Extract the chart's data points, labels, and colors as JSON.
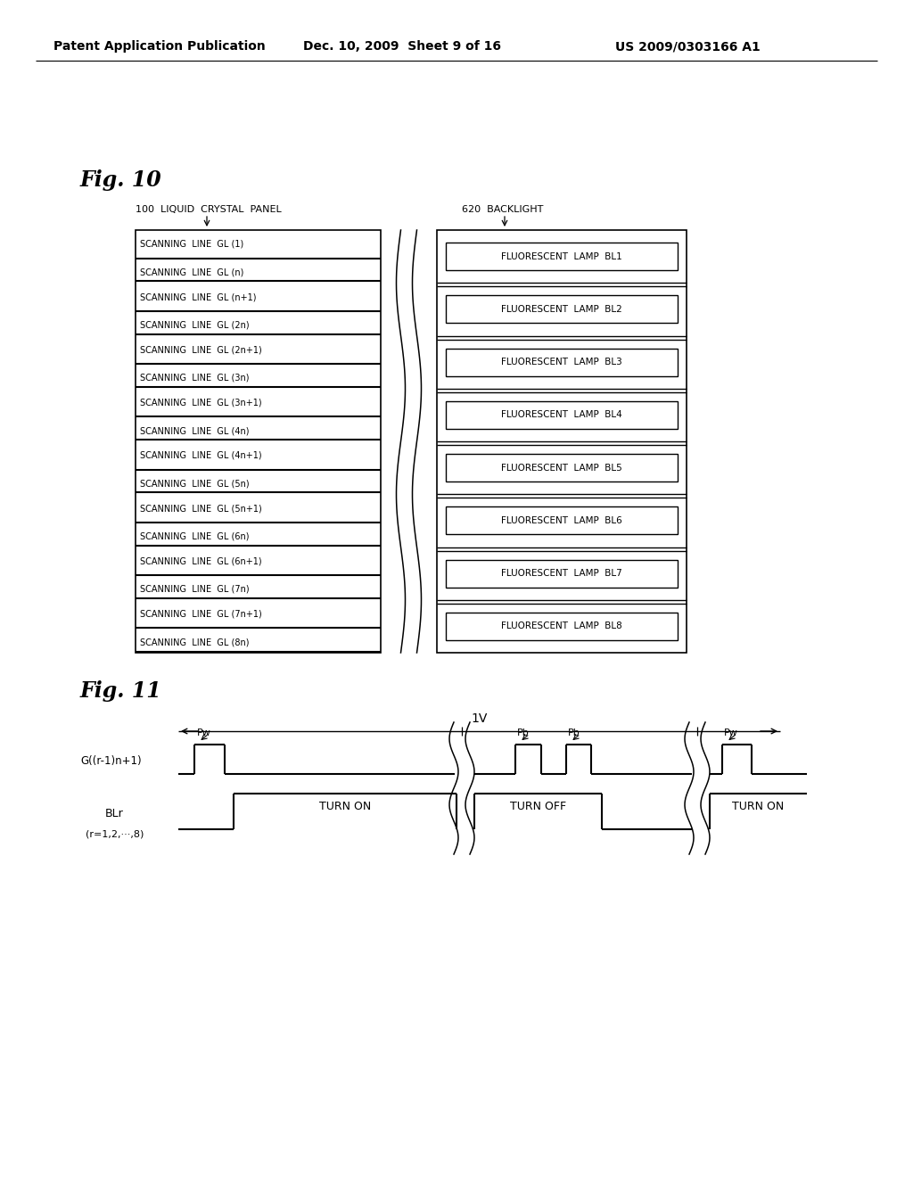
{
  "header_left": "Patent Application Publication",
  "header_mid": "Dec. 10, 2009  Sheet 9 of 16",
  "header_right": "US 2009/0303166 A1",
  "fig10_title": "Fig. 10",
  "fig11_title": "Fig. 11",
  "panel_label": "100 LIQUID CRYSTAL PANEL",
  "backlight_label": "620 BACKLIGHT",
  "scanning_lines": [
    "SCANNING  LINE  GL (1)",
    "SCANNING  LINE  GL (n)",
    "SCANNING  LINE  GL (n+1)",
    "SCANNING  LINE  GL (2n)",
    "SCANNING  LINE  GL (2n+1)",
    "SCANNING  LINE  GL (3n)",
    "SCANNING  LINE  GL (3n+1)",
    "SCANNING  LINE  GL (4n)",
    "SCANNING  LINE  GL (4n+1)",
    "SCANNING  LINE  GL (5n)",
    "SCANNING  LINE  GL (5n+1)",
    "SCANNING  LINE  GL (6n)",
    "SCANNING  LINE  GL (6n+1)",
    "SCANNING  LINE  GL (7n)",
    "SCANNING  LINE  GL (7n+1)",
    "SCANNING  LINE  GL (8n)"
  ],
  "fluorescent_lamps": [
    "FLUORESCENT  LAMP  BL1",
    "FLUORESCENT  LAMP  BL2",
    "FLUORESCENT  LAMP  BL3",
    "FLUORESCENT  LAMP  BL4",
    "FLUORESCENT  LAMP  BL5",
    "FLUORESCENT  LAMP  BL6",
    "FLUORESCENT  LAMP  BL7",
    "FLUORESCENT  LAMP  BL8"
  ],
  "bg_color": "#ffffff",
  "line_color": "#000000",
  "text_color": "#000000",
  "fig11_signal_label": "G((r-1)n+1)",
  "fig11_blr_label": "BLr",
  "fig11_blr_sub": "(r=1,2,···,8)",
  "fig11_1v_label": "1V",
  "fig11_pw_label": "Pw",
  "fig11_pb_label": "Pb",
  "fig11_turn_on": "TURN ON",
  "fig11_turn_off": "TURN OFF",
  "fig11_turn_on2": "TURN ON"
}
